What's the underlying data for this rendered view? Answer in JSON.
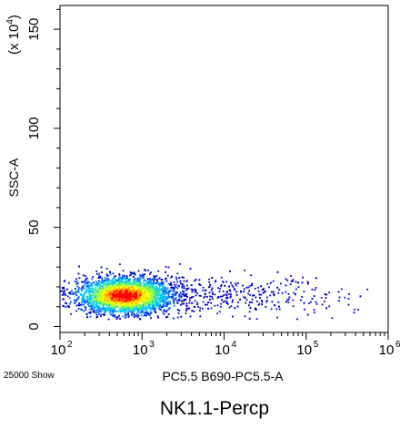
{
  "chart_data": {
    "type": "scatter",
    "subtype": "density dot plot (flow cytometry)",
    "xlabel": "PC5.5 B690-PC5.5-A",
    "ylabel": "SSC-A",
    "y_scale_note": "(x 10",
    "y_scale_exponent": "4",
    "x_scale": "log",
    "xlim": [
      100,
      1000000
    ],
    "x_ticks": [
      {
        "value": 100,
        "base": "10",
        "exp": "2"
      },
      {
        "value": 1000,
        "base": "10",
        "exp": "3"
      },
      {
        "value": 10000,
        "base": "10",
        "exp": "4"
      },
      {
        "value": 100000,
        "base": "10",
        "exp": "5"
      },
      {
        "value": 1000000,
        "base": "10",
        "exp": "6"
      }
    ],
    "ylim": [
      -3,
      162
    ],
    "y_ticks": [
      0,
      50,
      100,
      150
    ],
    "events_note": "25000 Show",
    "caption": "NK1.1-Percp",
    "grid": false,
    "population": {
      "x_center": 600,
      "x_spread_decades": 0.28,
      "y_center": 16,
      "y_spread": 4.5,
      "y_range": [
        4,
        32
      ],
      "tail_x_max": 600000,
      "n_dots_drawn": 4200
    },
    "density_colors": [
      "#0000cc",
      "#0060ff",
      "#00c8ff",
      "#30e0a0",
      "#b0ff30",
      "#ffff00",
      "#ff9900",
      "#ff0000"
    ]
  }
}
